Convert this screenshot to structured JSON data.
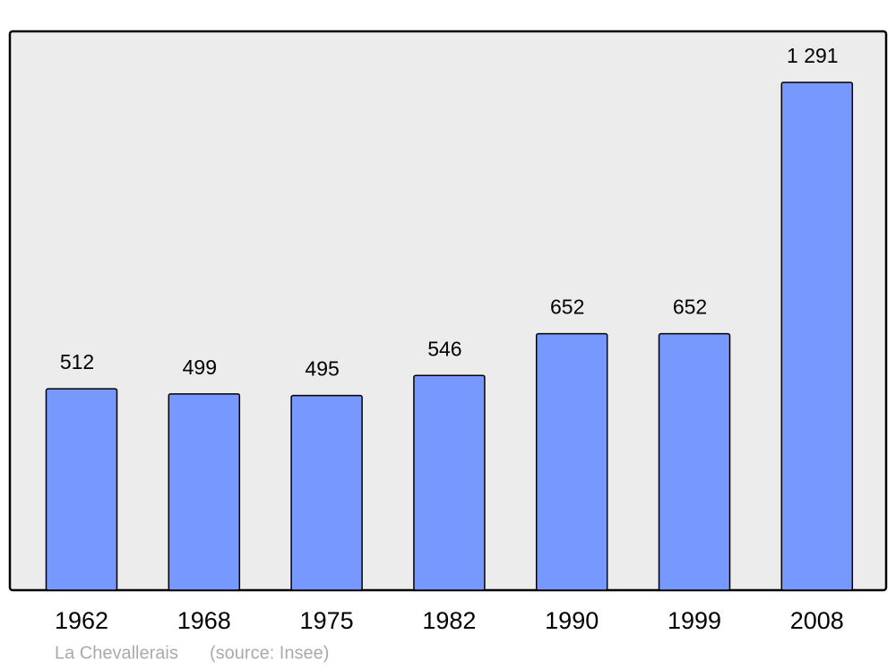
{
  "chart_data": {
    "type": "bar",
    "categories": [
      "1962",
      "1968",
      "1975",
      "1982",
      "1990",
      "1999",
      "2008"
    ],
    "values": [
      512,
      499,
      495,
      546,
      652,
      652,
      1291
    ],
    "value_labels": [
      "512",
      "499",
      "495",
      "546",
      "652",
      "652",
      "1 291"
    ],
    "color": "#7799ff",
    "caption": "La Chevallerais",
    "source": "(source: Insee)"
  }
}
